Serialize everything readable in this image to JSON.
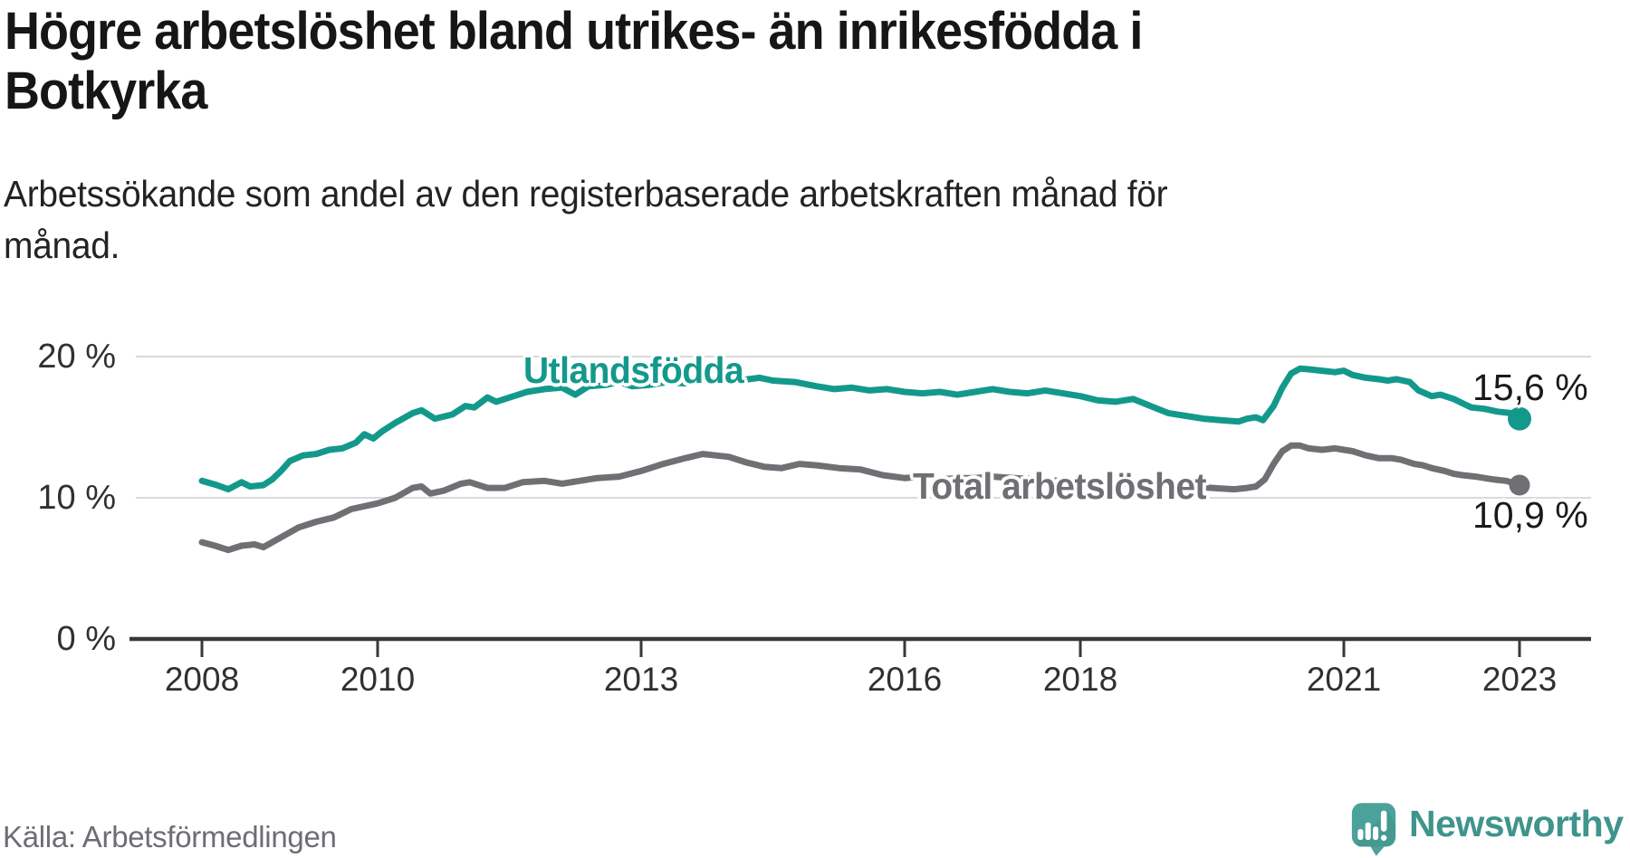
{
  "header": {
    "title": "Högre arbetslöshet bland utrikes- än inrikesfödda i\nBotkyrka",
    "subtitle": "Arbetssökande som andel av den registerbaserade arbetskraften månad för\nmånad."
  },
  "footer": {
    "source": "Källa: Arbetsförmedlingen",
    "brand_name": "Newsworthy"
  },
  "colors": {
    "teal_line": "#13998c",
    "gray_line": "#6f6f74",
    "grid": "#d9d9d9",
    "axis": "#383838",
    "tick_text": "#303030",
    "end_label_text": "#1a1a1a",
    "muted_text": "#6d6d75",
    "brand_text": "#3f948c",
    "logo_fill": "#4ba29a"
  },
  "chart_data": {
    "type": "line",
    "unit": "%",
    "y_axis": {
      "range": [
        0,
        21.5
      ],
      "ticks": [
        0,
        10,
        20
      ],
      "labels": [
        "0 %",
        "10 %",
        "20 %"
      ]
    },
    "x_axis": {
      "range": [
        2007.2,
        2023.8
      ],
      "ticks": [
        2008,
        2010,
        2013,
        2016,
        2018,
        2021,
        2023
      ],
      "labels": [
        "2008",
        "2010",
        "2013",
        "2016",
        "2018",
        "2021",
        "2023"
      ]
    },
    "grid": "horizontal-only",
    "legend": "inline-labels",
    "series": [
      {
        "name": "Utlandsfödda",
        "color": "#13998c",
        "end_label": "15,6 %",
        "last_value": 15.6,
        "line_width": 7,
        "dot_radius": 13,
        "points": [
          [
            2008.0,
            11.2
          ],
          [
            2008.17,
            10.9
          ],
          [
            2008.3,
            10.6
          ],
          [
            2008.45,
            11.1
          ],
          [
            2008.55,
            10.8
          ],
          [
            2008.7,
            10.9
          ],
          [
            2008.8,
            11.3
          ],
          [
            2008.9,
            11.9
          ],
          [
            2009.0,
            12.6
          ],
          [
            2009.15,
            13.0
          ],
          [
            2009.3,
            13.1
          ],
          [
            2009.45,
            13.4
          ],
          [
            2009.6,
            13.5
          ],
          [
            2009.75,
            13.9
          ],
          [
            2009.85,
            14.5
          ],
          [
            2009.95,
            14.2
          ],
          [
            2010.05,
            14.7
          ],
          [
            2010.2,
            15.3
          ],
          [
            2010.4,
            16.0
          ],
          [
            2010.5,
            16.2
          ],
          [
            2010.65,
            15.6
          ],
          [
            2010.85,
            15.9
          ],
          [
            2011.0,
            16.5
          ],
          [
            2011.1,
            16.4
          ],
          [
            2011.25,
            17.1
          ],
          [
            2011.35,
            16.8
          ],
          [
            2011.55,
            17.2
          ],
          [
            2011.7,
            17.5
          ],
          [
            2011.9,
            17.7
          ],
          [
            2012.1,
            17.8
          ],
          [
            2012.25,
            17.3
          ],
          [
            2012.4,
            17.9
          ],
          [
            2012.6,
            18.0
          ],
          [
            2012.75,
            18.2
          ],
          [
            2012.9,
            17.9
          ],
          [
            2013.1,
            18.0
          ],
          [
            2013.3,
            18.2
          ],
          [
            2013.5,
            18.1
          ],
          [
            2013.7,
            18.3
          ],
          [
            2013.9,
            18.2
          ],
          [
            2014.1,
            18.3
          ],
          [
            2014.35,
            18.5
          ],
          [
            2014.5,
            18.3
          ],
          [
            2014.75,
            18.2
          ],
          [
            2015.0,
            17.9
          ],
          [
            2015.2,
            17.7
          ],
          [
            2015.4,
            17.8
          ],
          [
            2015.6,
            17.6
          ],
          [
            2015.8,
            17.7
          ],
          [
            2016.0,
            17.5
          ],
          [
            2016.2,
            17.4
          ],
          [
            2016.4,
            17.5
          ],
          [
            2016.6,
            17.3
          ],
          [
            2016.8,
            17.5
          ],
          [
            2017.0,
            17.7
          ],
          [
            2017.2,
            17.5
          ],
          [
            2017.4,
            17.4
          ],
          [
            2017.6,
            17.6
          ],
          [
            2017.8,
            17.4
          ],
          [
            2018.0,
            17.2
          ],
          [
            2018.2,
            16.9
          ],
          [
            2018.4,
            16.8
          ],
          [
            2018.6,
            17.0
          ],
          [
            2018.8,
            16.5
          ],
          [
            2019.0,
            16.0
          ],
          [
            2019.2,
            15.8
          ],
          [
            2019.4,
            15.6
          ],
          [
            2019.6,
            15.5
          ],
          [
            2019.8,
            15.4
          ],
          [
            2019.9,
            15.6
          ],
          [
            2020.0,
            15.7
          ],
          [
            2020.08,
            15.5
          ],
          [
            2020.2,
            16.5
          ],
          [
            2020.3,
            17.8
          ],
          [
            2020.4,
            18.8
          ],
          [
            2020.5,
            19.15
          ],
          [
            2020.6,
            19.1
          ],
          [
            2020.75,
            19.0
          ],
          [
            2020.9,
            18.9
          ],
          [
            2021.0,
            19.0
          ],
          [
            2021.1,
            18.7
          ],
          [
            2021.25,
            18.5
          ],
          [
            2021.4,
            18.4
          ],
          [
            2021.5,
            18.3
          ],
          [
            2021.6,
            18.4
          ],
          [
            2021.75,
            18.2
          ],
          [
            2021.85,
            17.6
          ],
          [
            2022.0,
            17.2
          ],
          [
            2022.1,
            17.3
          ],
          [
            2022.25,
            17.0
          ],
          [
            2022.35,
            16.7
          ],
          [
            2022.45,
            16.4
          ],
          [
            2022.6,
            16.3
          ],
          [
            2022.75,
            16.1
          ],
          [
            2022.9,
            16.0
          ],
          [
            2023.0,
            15.6
          ]
        ]
      },
      {
        "name": "Total arbetslöshet",
        "color": "#6f6f74",
        "end_label": "10,9 %",
        "last_value": 10.9,
        "line_width": 7,
        "dot_radius": 11.5,
        "points": [
          [
            2008.0,
            6.85
          ],
          [
            2008.15,
            6.6
          ],
          [
            2008.3,
            6.3
          ],
          [
            2008.45,
            6.6
          ],
          [
            2008.6,
            6.7
          ],
          [
            2008.7,
            6.5
          ],
          [
            2008.9,
            7.2
          ],
          [
            2009.1,
            7.9
          ],
          [
            2009.3,
            8.3
          ],
          [
            2009.5,
            8.6
          ],
          [
            2009.7,
            9.2
          ],
          [
            2010.0,
            9.6
          ],
          [
            2010.2,
            10.0
          ],
          [
            2010.4,
            10.7
          ],
          [
            2010.5,
            10.8
          ],
          [
            2010.6,
            10.3
          ],
          [
            2010.75,
            10.5
          ],
          [
            2010.95,
            11.0
          ],
          [
            2011.05,
            11.1
          ],
          [
            2011.25,
            10.7
          ],
          [
            2011.45,
            10.7
          ],
          [
            2011.65,
            11.1
          ],
          [
            2011.9,
            11.2
          ],
          [
            2012.1,
            11.0
          ],
          [
            2012.3,
            11.2
          ],
          [
            2012.5,
            11.4
          ],
          [
            2012.75,
            11.5
          ],
          [
            2013.0,
            11.9
          ],
          [
            2013.25,
            12.4
          ],
          [
            2013.5,
            12.8
          ],
          [
            2013.7,
            13.1
          ],
          [
            2013.85,
            13.0
          ],
          [
            2014.0,
            12.9
          ],
          [
            2014.2,
            12.5
          ],
          [
            2014.4,
            12.2
          ],
          [
            2014.6,
            12.1
          ],
          [
            2014.8,
            12.4
          ],
          [
            2015.0,
            12.3
          ],
          [
            2015.25,
            12.1
          ],
          [
            2015.5,
            12.0
          ],
          [
            2015.75,
            11.6
          ],
          [
            2016.0,
            11.4
          ],
          [
            2016.2,
            11.5
          ],
          [
            2016.4,
            11.3
          ],
          [
            2016.6,
            11.4
          ],
          [
            2016.8,
            11.4
          ],
          [
            2017.0,
            11.5
          ],
          [
            2017.25,
            11.4
          ],
          [
            2017.5,
            11.3
          ],
          [
            2017.75,
            11.2
          ],
          [
            2018.0,
            11.2
          ],
          [
            2018.25,
            11.1
          ],
          [
            2018.5,
            11.0
          ],
          [
            2018.75,
            10.9
          ],
          [
            2019.0,
            10.9
          ],
          [
            2019.25,
            10.8
          ],
          [
            2019.5,
            10.7
          ],
          [
            2019.75,
            10.6
          ],
          [
            2019.9,
            10.7
          ],
          [
            2020.0,
            10.8
          ],
          [
            2020.1,
            11.3
          ],
          [
            2020.2,
            12.4
          ],
          [
            2020.3,
            13.3
          ],
          [
            2020.4,
            13.7
          ],
          [
            2020.5,
            13.7
          ],
          [
            2020.6,
            13.5
          ],
          [
            2020.75,
            13.4
          ],
          [
            2020.9,
            13.5
          ],
          [
            2021.0,
            13.4
          ],
          [
            2021.1,
            13.3
          ],
          [
            2021.25,
            13.0
          ],
          [
            2021.4,
            12.8
          ],
          [
            2021.55,
            12.8
          ],
          [
            2021.65,
            12.7
          ],
          [
            2021.8,
            12.4
          ],
          [
            2021.9,
            12.3
          ],
          [
            2022.0,
            12.1
          ],
          [
            2022.15,
            11.9
          ],
          [
            2022.25,
            11.7
          ],
          [
            2022.35,
            11.6
          ],
          [
            2022.5,
            11.5
          ],
          [
            2022.6,
            11.4
          ],
          [
            2022.7,
            11.3
          ],
          [
            2022.85,
            11.2
          ],
          [
            2022.95,
            11.0
          ],
          [
            2023.0,
            10.9
          ]
        ]
      }
    ]
  }
}
